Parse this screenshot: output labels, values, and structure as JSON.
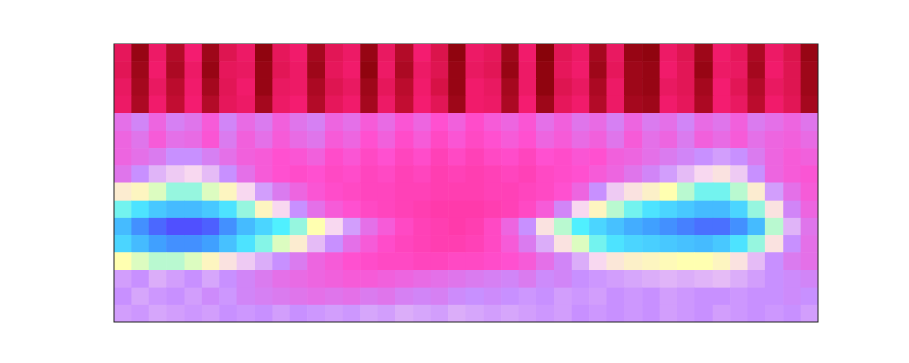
{
  "chart_data": {
    "type": "heatmap",
    "tick_labels": false,
    "zlim": [
      0,
      1
    ],
    "values": [
      [
        0.18,
        0.04,
        0.2,
        0.08,
        0.22,
        0.05,
        0.16,
        0.2,
        0.03,
        0.18,
        0.21,
        0.06,
        0.17,
        0.2,
        0.04,
        0.19,
        0.08,
        0.22,
        0.15,
        0.03,
        0.2,
        0.18,
        0.05,
        0.21,
        0.02,
        0.17,
        0.2,
        0.06,
        0.19,
        0.04,
        0.03,
        0.2,
        0.16,
        0.05,
        0.21,
        0.18,
        0.07,
        0.2,
        0.15,
        0.04
      ],
      [
        0.17,
        0.05,
        0.21,
        0.07,
        0.2,
        0.04,
        0.18,
        0.19,
        0.04,
        0.17,
        0.2,
        0.05,
        0.18,
        0.21,
        0.03,
        0.2,
        0.07,
        0.2,
        0.16,
        0.04,
        0.19,
        0.17,
        0.04,
        0.2,
        0.03,
        0.18,
        0.21,
        0.05,
        0.18,
        0.05,
        0.04,
        0.21,
        0.17,
        0.04,
        0.2,
        0.19,
        0.06,
        0.21,
        0.16,
        0.05
      ],
      [
        0.19,
        0.06,
        0.19,
        0.09,
        0.21,
        0.06,
        0.17,
        0.21,
        0.04,
        0.19,
        0.2,
        0.07,
        0.16,
        0.19,
        0.05,
        0.18,
        0.09,
        0.21,
        0.14,
        0.04,
        0.21,
        0.19,
        0.06,
        0.2,
        0.03,
        0.16,
        0.19,
        0.07,
        0.2,
        0.05,
        0.04,
        0.19,
        0.17,
        0.06,
        0.22,
        0.17,
        0.08,
        0.19,
        0.16,
        0.05
      ],
      [
        0.2,
        0.07,
        0.21,
        0.1,
        0.22,
        0.08,
        0.18,
        0.2,
        0.06,
        0.2,
        0.22,
        0.08,
        0.18,
        0.21,
        0.06,
        0.2,
        0.1,
        0.22,
        0.17,
        0.05,
        0.21,
        0.2,
        0.07,
        0.22,
        0.05,
        0.18,
        0.21,
        0.08,
        0.2,
        0.06,
        0.05,
        0.21,
        0.18,
        0.07,
        0.22,
        0.19,
        0.09,
        0.21,
        0.17,
        0.06
      ],
      [
        0.44,
        0.48,
        0.42,
        0.47,
        0.45,
        0.4,
        0.48,
        0.43,
        0.46,
        0.41,
        0.45,
        0.47,
        0.42,
        0.44,
        0.4,
        0.43,
        0.39,
        0.42,
        0.38,
        0.41,
        0.37,
        0.4,
        0.42,
        0.39,
        0.44,
        0.41,
        0.45,
        0.43,
        0.47,
        0.42,
        0.46,
        0.44,
        0.48,
        0.43,
        0.45,
        0.41,
        0.46,
        0.44,
        0.42,
        0.45
      ],
      [
        0.42,
        0.45,
        0.4,
        0.44,
        0.43,
        0.39,
        0.46,
        0.41,
        0.44,
        0.4,
        0.43,
        0.45,
        0.4,
        0.42,
        0.38,
        0.41,
        0.37,
        0.4,
        0.36,
        0.39,
        0.36,
        0.38,
        0.4,
        0.38,
        0.42,
        0.4,
        0.43,
        0.41,
        0.45,
        0.4,
        0.44,
        0.42,
        0.46,
        0.41,
        0.43,
        0.4,
        0.44,
        0.42,
        0.41,
        0.43
      ],
      [
        0.42,
        0.44,
        0.46,
        0.5,
        0.5,
        0.47,
        0.44,
        0.41,
        0.4,
        0.38,
        0.39,
        0.41,
        0.37,
        0.39,
        0.36,
        0.38,
        0.35,
        0.37,
        0.34,
        0.36,
        0.34,
        0.36,
        0.37,
        0.35,
        0.38,
        0.37,
        0.39,
        0.38,
        0.41,
        0.42,
        0.44,
        0.46,
        0.48,
        0.5,
        0.52,
        0.5,
        0.46,
        0.42,
        0.4,
        0.41
      ],
      [
        0.45,
        0.5,
        0.55,
        0.58,
        0.6,
        0.56,
        0.5,
        0.44,
        0.4,
        0.38,
        0.37,
        0.38,
        0.36,
        0.37,
        0.35,
        0.36,
        0.34,
        0.35,
        0.33,
        0.34,
        0.33,
        0.34,
        0.35,
        0.34,
        0.36,
        0.37,
        0.38,
        0.4,
        0.42,
        0.45,
        0.48,
        0.52,
        0.56,
        0.6,
        0.62,
        0.58,
        0.5,
        0.42,
        0.4,
        0.39
      ],
      [
        0.64,
        0.66,
        0.7,
        0.74,
        0.74,
        0.7,
        0.66,
        0.6,
        0.52,
        0.46,
        0.42,
        0.39,
        0.37,
        0.36,
        0.35,
        0.35,
        0.34,
        0.34,
        0.33,
        0.33,
        0.33,
        0.34,
        0.34,
        0.35,
        0.36,
        0.38,
        0.42,
        0.5,
        0.58,
        0.62,
        0.65,
        0.68,
        0.72,
        0.76,
        0.76,
        0.72,
        0.64,
        0.52,
        0.44,
        0.4
      ],
      [
        0.76,
        0.8,
        0.84,
        0.86,
        0.86,
        0.84,
        0.8,
        0.74,
        0.66,
        0.6,
        0.5,
        0.44,
        0.4,
        0.38,
        0.36,
        0.35,
        0.34,
        0.33,
        0.32,
        0.32,
        0.32,
        0.33,
        0.34,
        0.36,
        0.4,
        0.48,
        0.6,
        0.66,
        0.72,
        0.76,
        0.8,
        0.82,
        0.84,
        0.86,
        0.86,
        0.82,
        0.74,
        0.62,
        0.48,
        0.42
      ],
      [
        0.86,
        0.92,
        0.97,
        1.0,
        1.0,
        0.98,
        0.92,
        0.86,
        0.82,
        0.78,
        0.74,
        0.68,
        0.6,
        0.52,
        0.44,
        0.4,
        0.36,
        0.34,
        0.33,
        0.32,
        0.33,
        0.36,
        0.42,
        0.5,
        0.62,
        0.72,
        0.78,
        0.82,
        0.85,
        0.88,
        0.9,
        0.92,
        0.94,
        0.96,
        0.96,
        0.92,
        0.86,
        0.72,
        0.55,
        0.45
      ],
      [
        0.82,
        0.86,
        0.9,
        0.92,
        0.92,
        0.9,
        0.85,
        0.8,
        0.75,
        0.7,
        0.64,
        0.56,
        0.5,
        0.44,
        0.4,
        0.37,
        0.35,
        0.34,
        0.33,
        0.33,
        0.34,
        0.36,
        0.4,
        0.46,
        0.54,
        0.62,
        0.7,
        0.76,
        0.8,
        0.82,
        0.83,
        0.84,
        0.85,
        0.86,
        0.84,
        0.8,
        0.74,
        0.62,
        0.5,
        0.44
      ],
      [
        0.68,
        0.7,
        0.72,
        0.72,
        0.7,
        0.66,
        0.62,
        0.58,
        0.54,
        0.5,
        0.46,
        0.42,
        0.4,
        0.38,
        0.37,
        0.36,
        0.36,
        0.35,
        0.35,
        0.36,
        0.36,
        0.37,
        0.38,
        0.4,
        0.44,
        0.48,
        0.54,
        0.6,
        0.63,
        0.65,
        0.66,
        0.67,
        0.68,
        0.68,
        0.66,
        0.62,
        0.56,
        0.5,
        0.46,
        0.44
      ],
      [
        0.52,
        0.5,
        0.54,
        0.52,
        0.5,
        0.53,
        0.5,
        0.48,
        0.46,
        0.44,
        0.43,
        0.42,
        0.41,
        0.4,
        0.4,
        0.41,
        0.42,
        0.43,
        0.44,
        0.45,
        0.46,
        0.47,
        0.48,
        0.46,
        0.49,
        0.48,
        0.5,
        0.51,
        0.52,
        0.53,
        0.54,
        0.55,
        0.54,
        0.55,
        0.56,
        0.54,
        0.52,
        0.5,
        0.49,
        0.48
      ],
      [
        0.5,
        0.53,
        0.51,
        0.5,
        0.52,
        0.49,
        0.51,
        0.48,
        0.47,
        0.46,
        0.45,
        0.44,
        0.45,
        0.44,
        0.46,
        0.45,
        0.47,
        0.48,
        0.47,
        0.49,
        0.5,
        0.49,
        0.5,
        0.51,
        0.5,
        0.52,
        0.51,
        0.52,
        0.5,
        0.51,
        0.5,
        0.52,
        0.51,
        0.5,
        0.5,
        0.51,
        0.5,
        0.5,
        0.49,
        0.5
      ],
      [
        0.52,
        0.51,
        0.53,
        0.52,
        0.51,
        0.52,
        0.5,
        0.51,
        0.5,
        0.52,
        0.5,
        0.51,
        0.52,
        0.51,
        0.53,
        0.52,
        0.54,
        0.53,
        0.52,
        0.54,
        0.53,
        0.52,
        0.53,
        0.52,
        0.51,
        0.52,
        0.5,
        0.51,
        0.5,
        0.51,
        0.5,
        0.52,
        0.51,
        0.5,
        0.52,
        0.51,
        0.5,
        0.51,
        0.5,
        0.52
      ]
    ]
  }
}
